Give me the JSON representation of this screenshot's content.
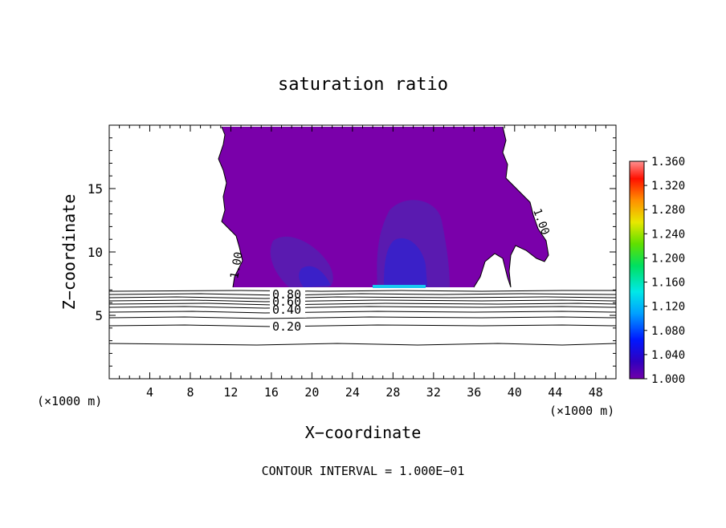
{
  "chart_data": {
    "type": "contour",
    "title": "saturation ratio",
    "xlabel": "X−coordinate",
    "ylabel": "Z−coordinate",
    "x_unit_left": "(×1000 m)",
    "x_unit_right": "(×1000 m)",
    "xlim": [
      0,
      50
    ],
    "ylim": [
      0,
      20
    ],
    "x_ticks": [
      4,
      8,
      12,
      16,
      20,
      24,
      28,
      32,
      36,
      40,
      44,
      48
    ],
    "y_ticks": [
      5,
      10,
      15
    ],
    "contour_labels": [
      "1.00",
      "1.00",
      "0.80",
      "0.60",
      "0.40",
      "0.20"
    ],
    "footer": "CONTOUR INTERVAL = 1.000E−01",
    "colorbar": {
      "ticks": [
        "1.360",
        "1.320",
        "1.280",
        "1.240",
        "1.200",
        "1.160",
        "1.120",
        "1.080",
        "1.040",
        "1.000"
      ],
      "min": 1.0,
      "max": 1.36
    },
    "colors": {
      "fill_base": "#7a00aa",
      "fill_mid": "#5a1ab0",
      "fill_high": "#3a20c8",
      "fill_peak": "#18c8f0"
    }
  }
}
